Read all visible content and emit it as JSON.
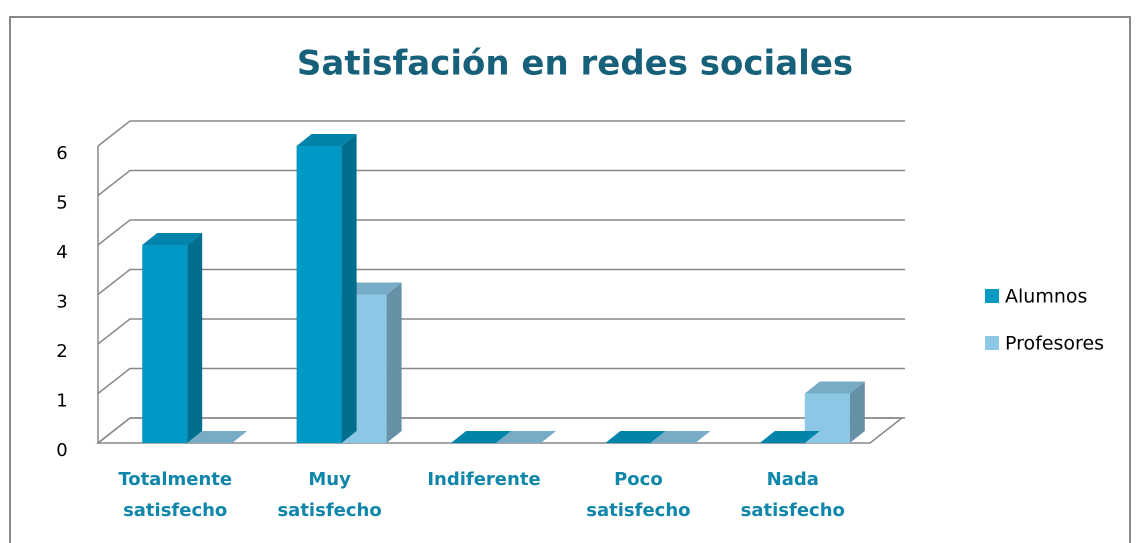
{
  "chart_data": {
    "type": "bar3d",
    "title": "Satisfación en redes sociales",
    "categories": [
      "Totalmente satisfecho",
      "Muy satisfecho",
      "Indiferente",
      "Poco satisfecho",
      "Nada satisfecho"
    ],
    "series": [
      {
        "name": "Alumnos",
        "color": "#0099c6",
        "values": [
          4,
          6,
          0,
          0,
          0
        ]
      },
      {
        "name": "Profesores",
        "color": "#8cc8e6",
        "values": [
          0,
          3,
          0,
          0,
          1
        ]
      }
    ],
    "ylim": [
      0,
      6
    ],
    "yticks": [
      0,
      1,
      2,
      3,
      4,
      5,
      6
    ],
    "grid": true,
    "legend": "right"
  }
}
